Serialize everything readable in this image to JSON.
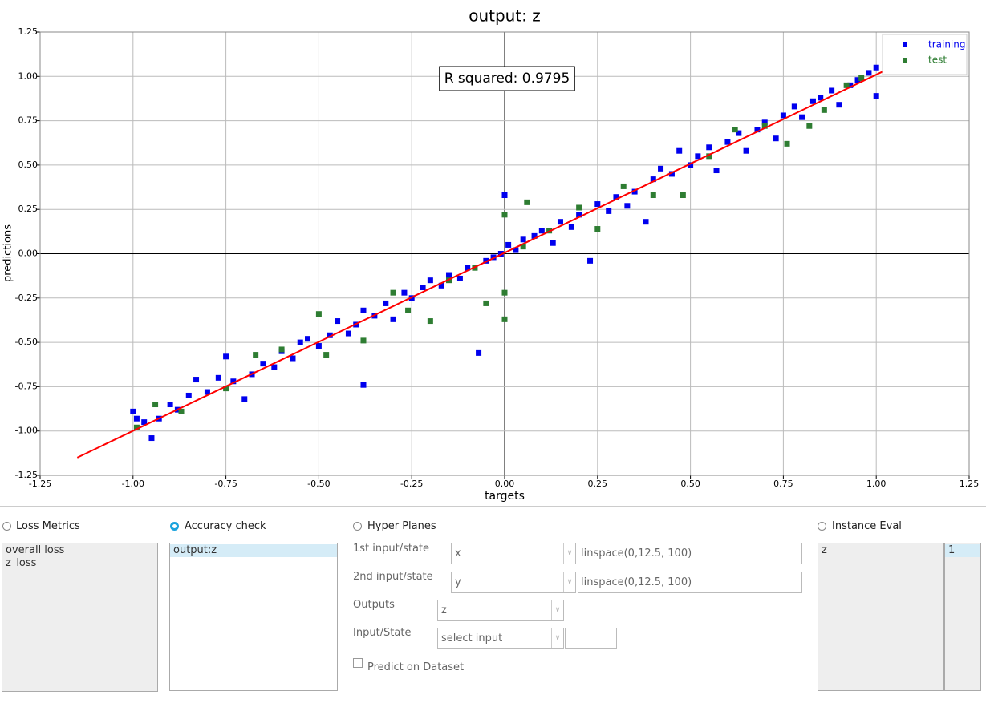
{
  "chart_data": {
    "type": "scatter",
    "title": "output: z",
    "xlabel": "targets",
    "ylabel": "predictions",
    "annotation": "R squared: 0.9795",
    "xlim": [
      -1.25,
      1.25
    ],
    "ylim": [
      -1.25,
      1.25
    ],
    "xticks": [
      {
        "value": -1.25,
        "label": "-1.25"
      },
      {
        "value": -1,
        "label": "-1.00"
      },
      {
        "value": -0.75,
        "label": "-0.75"
      },
      {
        "value": -0.5,
        "label": "-0.50"
      },
      {
        "value": -0.25,
        "label": "-0.25"
      },
      {
        "value": 0,
        "label": "0.00"
      },
      {
        "value": 0.25,
        "label": "0.25"
      },
      {
        "value": 0.5,
        "label": "0.50"
      },
      {
        "value": 0.75,
        "label": "0.75"
      },
      {
        "value": 1,
        "label": "1.00"
      },
      {
        "value": 1.25,
        "label": "1.25"
      }
    ],
    "yticks": [
      {
        "value": -1.25,
        "label": "-1.25"
      },
      {
        "value": -1,
        "label": "-1.00"
      },
      {
        "value": -0.75,
        "label": "-0.75"
      },
      {
        "value": -0.5,
        "label": "-0.50"
      },
      {
        "value": -0.25,
        "label": "-0.25"
      },
      {
        "value": 0,
        "label": "0.00"
      },
      {
        "value": 0.25,
        "label": "0.25"
      },
      {
        "value": 0.5,
        "label": "0.50"
      },
      {
        "value": 0.75,
        "label": "0.75"
      },
      {
        "value": 1,
        "label": "1.00"
      },
      {
        "value": 1.25,
        "label": "1.25"
      }
    ],
    "grid": true,
    "legend": "upper right",
    "fit_line": {
      "color": "#ff0000",
      "x": [
        -1.15,
        1.03
      ],
      "y": [
        -1.15,
        1.04
      ]
    },
    "series": [
      {
        "name": "training",
        "color": "#0000ee",
        "x": [
          -1.0,
          -0.99,
          -0.97,
          -0.95,
          -0.93,
          -0.9,
          -0.88,
          -0.85,
          -0.83,
          -0.8,
          -0.77,
          -0.75,
          -0.73,
          -0.7,
          -0.68,
          -0.65,
          -0.62,
          -0.6,
          -0.57,
          -0.55,
          -0.53,
          -0.5,
          -0.47,
          -0.45,
          -0.42,
          -0.4,
          -0.38,
          -0.35,
          -0.32,
          -0.3,
          -0.27,
          -0.25,
          -0.22,
          -0.2,
          -0.17,
          -0.15,
          -0.12,
          -0.1,
          -0.07,
          -0.05,
          -0.03,
          -0.01,
          0.0,
          0.01,
          0.03,
          0.05,
          0.08,
          0.1,
          0.13,
          0.15,
          0.18,
          0.2,
          0.23,
          0.25,
          0.28,
          0.3,
          0.33,
          0.35,
          0.38,
          0.4,
          0.42,
          0.45,
          0.47,
          0.5,
          0.52,
          0.55,
          0.57,
          0.6,
          0.63,
          0.65,
          0.68,
          0.7,
          0.73,
          0.75,
          0.78,
          0.8,
          0.83,
          0.85,
          0.88,
          0.9,
          0.93,
          0.95,
          0.98,
          1.0,
          1.0,
          -0.38
        ],
        "values": [
          -0.89,
          -0.93,
          -0.95,
          -1.04,
          -0.93,
          -0.85,
          -0.88,
          -0.8,
          -0.71,
          -0.78,
          -0.7,
          -0.58,
          -0.72,
          -0.82,
          -0.68,
          -0.62,
          -0.64,
          -0.55,
          -0.59,
          -0.5,
          -0.48,
          -0.52,
          -0.46,
          -0.38,
          -0.45,
          -0.4,
          -0.32,
          -0.35,
          -0.28,
          -0.37,
          -0.22,
          -0.25,
          -0.19,
          -0.15,
          -0.18,
          -0.12,
          -0.14,
          -0.08,
          -0.56,
          -0.04,
          -0.02,
          0.0,
          0.33,
          0.05,
          0.02,
          0.08,
          0.1,
          0.13,
          0.06,
          0.18,
          0.15,
          0.22,
          -0.04,
          0.28,
          0.24,
          0.32,
          0.27,
          0.35,
          0.18,
          0.42,
          0.48,
          0.45,
          0.58,
          0.5,
          0.55,
          0.6,
          0.47,
          0.63,
          0.68,
          0.58,
          0.7,
          0.74,
          0.65,
          0.78,
          0.83,
          0.77,
          0.86,
          0.88,
          0.92,
          0.84,
          0.95,
          0.98,
          1.02,
          1.05,
          0.89,
          -0.74
        ]
      },
      {
        "name": "test",
        "color": "#2e7d32",
        "x": [
          -0.99,
          -0.94,
          -0.87,
          -0.75,
          -0.67,
          -0.6,
          -0.5,
          -0.48,
          -0.38,
          -0.3,
          -0.26,
          -0.2,
          -0.15,
          -0.08,
          -0.05,
          0.0,
          0.0,
          0.0,
          0.05,
          0.06,
          0.12,
          0.2,
          0.25,
          0.32,
          0.4,
          0.48,
          0.55,
          0.62,
          0.7,
          0.76,
          0.82,
          0.86,
          0.92,
          0.96
        ],
        "values": [
          -0.98,
          -0.85,
          -0.89,
          -0.76,
          -0.57,
          -0.54,
          -0.34,
          -0.57,
          -0.49,
          -0.22,
          -0.32,
          -0.38,
          -0.15,
          -0.08,
          -0.28,
          -0.37,
          -0.22,
          0.22,
          0.04,
          0.29,
          0.13,
          0.26,
          0.14,
          0.38,
          0.33,
          0.33,
          0.55,
          0.7,
          0.72,
          0.62,
          0.72,
          0.81,
          0.95,
          0.99
        ]
      }
    ]
  },
  "options": [
    {
      "label": "Loss Metrics",
      "selected": false
    },
    {
      "label": "Accuracy check",
      "selected": true
    },
    {
      "label": "Hyper Planes",
      "selected": false
    },
    {
      "label": "Instance Eval",
      "selected": false
    }
  ],
  "loss_metrics": [
    "overall loss",
    "z_loss"
  ],
  "accuracy_outputs": [
    "output:z"
  ],
  "hyper_planes": {
    "rows": [
      {
        "label": "1st input/state",
        "select": "x",
        "expr": "linspace(0,12.5, 100)"
      },
      {
        "label": "2nd input/state",
        "select": "y",
        "expr": "linspace(0,12.5, 100)"
      }
    ],
    "outputs_label": "Outputs",
    "outputs_select": "z",
    "input_state_label": "Input/State",
    "input_state_select": "select input",
    "predict_checkbox": "Predict on Dataset"
  },
  "instance_eval": {
    "name": "z",
    "value": "1"
  }
}
